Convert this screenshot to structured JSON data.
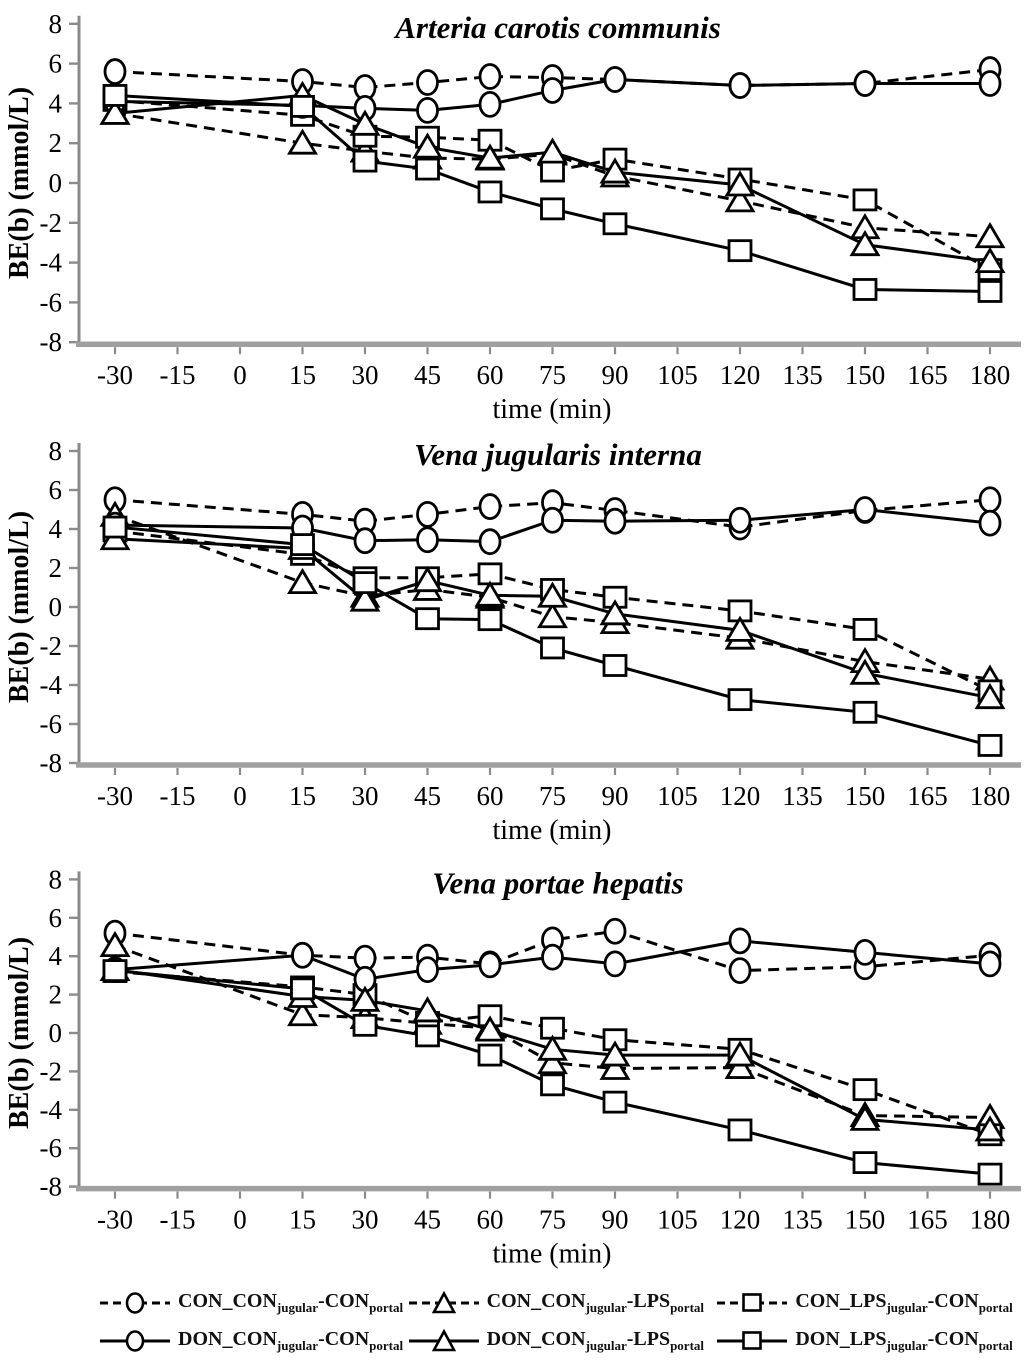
{
  "figure": {
    "y_axis_label": "BE(b) (mmol/L)",
    "x_axis_label": "time (min)",
    "y_tick_labels": [
      "8",
      "6",
      "4",
      "2",
      "0",
      "-2",
      "-4",
      "-6",
      "-8"
    ],
    "x_tick_labels": [
      "-30",
      "-15",
      "0",
      "15",
      "30",
      "45",
      "60",
      "75",
      "90",
      "105",
      "120",
      "135",
      "150",
      "165",
      "180"
    ]
  },
  "chart_data": [
    {
      "type": "line",
      "title": "Arteria carotis communis",
      "xlabel": "time (min)",
      "ylabel": "BE(b) (mmol/L)",
      "ylim": [
        -8,
        8
      ],
      "ytick_step": 2,
      "x_axis_ticks": [
        -30,
        -15,
        0,
        15,
        30,
        45,
        60,
        75,
        90,
        105,
        120,
        135,
        150,
        165,
        180
      ],
      "x": [
        -30,
        15,
        30,
        45,
        60,
        75,
        90,
        120,
        150,
        180
      ],
      "series": [
        {
          "name": "CON_CON_jugular-CON_portal",
          "marker": "circle",
          "line": "dashed",
          "values": [
            5.6,
            5.1,
            4.8,
            5.05,
            5.35,
            5.3,
            5.2,
            4.9,
            5.0,
            5.7
          ]
        },
        {
          "name": "CON_CON_jugular-LPS_portal",
          "marker": "triangle",
          "line": "dashed",
          "values": [
            3.5,
            2.0,
            1.6,
            1.25,
            1.2,
            1.45,
            0.35,
            -0.9,
            -2.25,
            -2.7
          ]
        },
        {
          "name": "CON_LPS_jugular-CON_portal",
          "marker": "square",
          "line": "dashed",
          "values": [
            4.15,
            3.4,
            2.35,
            2.3,
            2.15,
            0.6,
            1.2,
            0.2,
            -0.85,
            -4.35
          ]
        },
        {
          "name": "DON_CON_jugular-CON_portal",
          "marker": "circle",
          "line": "solid",
          "values": [
            4.1,
            3.9,
            3.75,
            3.65,
            3.95,
            4.65,
            5.2,
            4.9,
            5.0,
            5.0
          ]
        },
        {
          "name": "DON_CON_jugular-LPS_portal",
          "marker": "triangle",
          "line": "solid",
          "values": [
            3.5,
            4.4,
            2.95,
            1.8,
            1.25,
            1.55,
            0.55,
            -0.1,
            -3.1,
            -3.95
          ]
        },
        {
          "name": "DON_LPS_jugular-CON_portal",
          "marker": "square",
          "line": "solid",
          "values": [
            4.4,
            3.85,
            1.1,
            0.7,
            -0.45,
            -1.3,
            -2.05,
            -3.4,
            -5.35,
            -5.45
          ]
        }
      ]
    },
    {
      "type": "line",
      "title": "Vena jugularis interna",
      "xlabel": "time (min)",
      "ylabel": "BE(b) (mmol/L)",
      "ylim": [
        -8,
        8
      ],
      "ytick_step": 2,
      "x_axis_ticks": [
        -30,
        -15,
        0,
        15,
        30,
        45,
        60,
        75,
        90,
        105,
        120,
        135,
        150,
        165,
        180
      ],
      "x": [
        -30,
        15,
        30,
        45,
        60,
        75,
        90,
        120,
        150,
        180
      ],
      "series": [
        {
          "name": "CON_CON_jugular-CON_portal",
          "marker": "circle",
          "line": "dashed",
          "values": [
            5.5,
            4.75,
            4.4,
            4.75,
            5.15,
            5.35,
            4.95,
            4.1,
            4.95,
            5.5
          ]
        },
        {
          "name": "CON_CON_jugular-LPS_portal",
          "marker": "triangle",
          "line": "dashed",
          "values": [
            4.7,
            1.25,
            0.55,
            0.9,
            0.5,
            -0.5,
            -0.8,
            -1.6,
            -2.8,
            -3.7
          ]
        },
        {
          "name": "CON_LPS_jugular-CON_portal",
          "marker": "square",
          "line": "dashed",
          "values": [
            3.9,
            2.7,
            1.5,
            1.5,
            1.7,
            0.9,
            0.5,
            -0.2,
            -1.15,
            -4.3
          ]
        },
        {
          "name": "DON_CON_jugular-CON_portal",
          "marker": "circle",
          "line": "solid",
          "values": [
            4.2,
            4.05,
            3.4,
            3.45,
            3.35,
            4.45,
            4.4,
            4.45,
            5.0,
            4.3
          ]
        },
        {
          "name": "DON_CON_jugular-LPS_portal",
          "marker": "triangle",
          "line": "solid",
          "values": [
            3.5,
            3.0,
            0.35,
            1.35,
            0.6,
            0.55,
            -0.35,
            -1.2,
            -3.4,
            -4.65
          ]
        },
        {
          "name": "DON_LPS_jugular-CON_portal",
          "marker": "square",
          "line": "solid",
          "values": [
            4.1,
            3.2,
            1.25,
            -0.6,
            -0.65,
            -2.1,
            -3.0,
            -4.75,
            -5.4,
            -7.1
          ]
        }
      ]
    },
    {
      "type": "line",
      "title": "Vena portae hepatis",
      "xlabel": "time (min)",
      "ylabel": "BE(b) (mmol/L)",
      "ylim": [
        -8,
        8
      ],
      "ytick_step": 2,
      "x_axis_ticks": [
        -30,
        -15,
        0,
        15,
        30,
        45,
        60,
        75,
        90,
        105,
        120,
        135,
        150,
        165,
        180
      ],
      "x": [
        -30,
        15,
        30,
        45,
        60,
        75,
        90,
        120,
        150,
        180
      ],
      "series": [
        {
          "name": "CON_CON_jugular-CON_portal",
          "marker": "circle",
          "line": "dashed",
          "values": [
            5.2,
            4.05,
            3.9,
            3.95,
            3.6,
            4.85,
            5.3,
            3.25,
            3.45,
            4.05
          ]
        },
        {
          "name": "CON_CON_jugular-LPS_portal",
          "marker": "triangle",
          "line": "dashed",
          "values": [
            4.55,
            0.95,
            0.8,
            0.5,
            0.25,
            -1.55,
            -1.85,
            -1.8,
            -4.3,
            -4.4
          ]
        },
        {
          "name": "CON_LPS_jugular-CON_portal",
          "marker": "square",
          "line": "dashed",
          "values": [
            3.2,
            2.4,
            2.0,
            0.55,
            0.9,
            0.25,
            -0.35,
            -0.85,
            -2.95,
            -5.3
          ]
        },
        {
          "name": "DON_CON_jugular-CON_portal",
          "marker": "circle",
          "line": "solid",
          "values": [
            3.3,
            4.05,
            2.8,
            3.3,
            3.55,
            3.95,
            3.6,
            4.8,
            4.2,
            3.6
          ]
        },
        {
          "name": "DON_CON_jugular-LPS_portal",
          "marker": "triangle",
          "line": "solid",
          "values": [
            3.3,
            1.9,
            1.7,
            1.15,
            0.15,
            -0.85,
            -1.15,
            -1.15,
            -4.5,
            -5.05
          ]
        },
        {
          "name": "DON_LPS_jugular-CON_portal",
          "marker": "square",
          "line": "solid",
          "values": [
            3.25,
            2.3,
            0.4,
            -0.15,
            -1.15,
            -2.7,
            -3.6,
            -5.05,
            -6.75,
            -7.35
          ]
        }
      ]
    }
  ],
  "legend": {
    "rows": [
      [
        {
          "series": "CON_CON_jugular-CON_portal",
          "marker": "circle",
          "line": "dashed",
          "text1": "CON_CON",
          "sub1": "jugular",
          "text2": "-CON",
          "sub2": "portal"
        },
        {
          "series": "CON_CON_jugular-LPS_portal",
          "marker": "triangle",
          "line": "dashed",
          "text1": "CON_CON",
          "sub1": "jugular",
          "text2": "-LPS",
          "sub2": "portal"
        },
        {
          "series": "CON_LPS_jugular-CON_portal",
          "marker": "square",
          "line": "dashed",
          "text1": "CON_LPS",
          "sub1": "jugular",
          "text2": "-CON",
          "sub2": "portal"
        }
      ],
      [
        {
          "series": "DON_CON_jugular-CON_portal",
          "marker": "circle",
          "line": "solid",
          "text1": "DON_CON",
          "sub1": "jugular",
          "text2": "-CON",
          "sub2": "portal"
        },
        {
          "series": "DON_CON_jugular-LPS_portal",
          "marker": "triangle",
          "line": "solid",
          "text1": "DON_CON",
          "sub1": "jugular",
          "text2": "-LPS",
          "sub2": "portal"
        },
        {
          "series": "DON_LPS_jugular-CON_portal",
          "marker": "square",
          "line": "solid",
          "text1": "DON_LPS",
          "sub1": "jugular",
          "text2": "-CON",
          "sub2": "portal"
        }
      ]
    ]
  }
}
